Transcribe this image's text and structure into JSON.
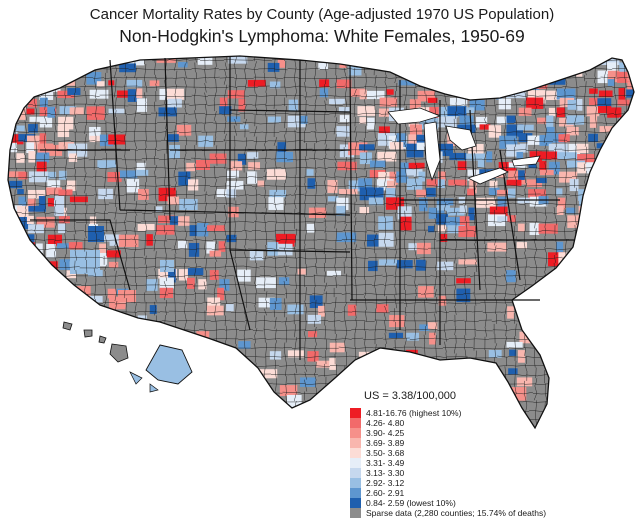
{
  "title": {
    "line1": "Cancer Mortality Rates by County (Age-adjusted 1970 US Population)",
    "line2": "Non-Hodgkin's Lymphoma:  White Females, 1950-69"
  },
  "legend": {
    "us_rate": "US = 3.38/100,000",
    "classes": [
      {
        "label": "4.81-16.76 (highest 10%)",
        "color": "#ee1c24"
      },
      {
        "label": "4.26- 4.80",
        "color": "#f26a6a"
      },
      {
        "label": "3.90- 4.25",
        "color": "#f6908a"
      },
      {
        "label": "3.69- 3.89",
        "color": "#f9b6ae"
      },
      {
        "label": "3.50- 3.68",
        "color": "#fcdcd6"
      },
      {
        "label": "3.31- 3.49",
        "color": "#e6eef8"
      },
      {
        "label": "3.13- 3.30",
        "color": "#c6d8ee"
      },
      {
        "label": "2.92- 3.12",
        "color": "#99bfe3"
      },
      {
        "label": "2.60- 2.91",
        "color": "#5e96cf"
      },
      {
        "label": "0.84- 2.59 (lowest 10%)",
        "color": "#1f5fae"
      },
      {
        "label": "Sparse data (2,280 counties; 15.74% of deaths)",
        "color": "#8c8c8c"
      }
    ]
  },
  "colors": {
    "sparse": "#8c8c8c",
    "county_border": "#1e1e1e",
    "background": "#ffffff"
  }
}
